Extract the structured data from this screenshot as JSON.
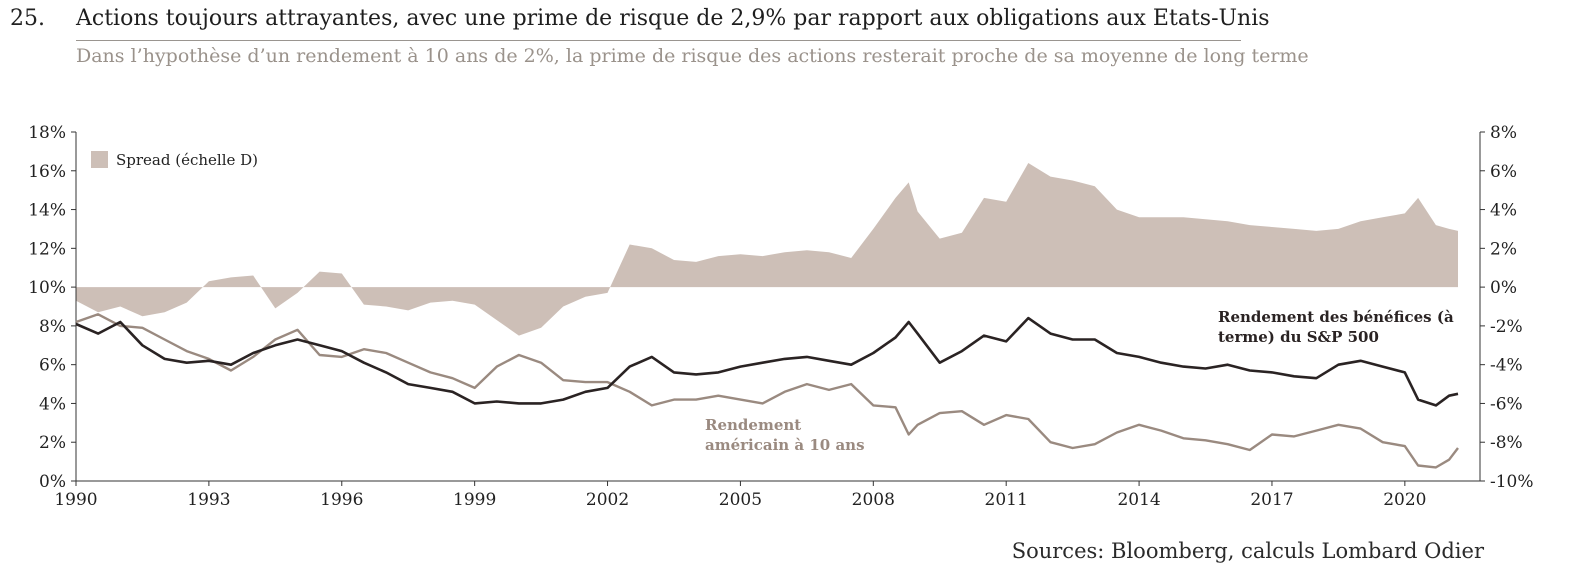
{
  "header": {
    "number": "25.",
    "title": "Actions toujours attrayantes, avec une prime de risque de 2,9% par rapport aux obligations aux Etats-Unis",
    "subtitle": "Dans l’hypothèse d’un rendement à 10 ans de 2%, la prime de risque des actions resterait proche de sa moyenne de long terme"
  },
  "source": "Sources: Bloomberg, calculs Lombard Odier",
  "colors": {
    "spread": "#cdbfb7",
    "earnings": "#2a2323",
    "treasury": "#9a8a80",
    "axis": "#333333"
  },
  "chart_data": {
    "type": "area",
    "x_ticks": [
      "1990",
      "1993",
      "1996",
      "1999",
      "2002",
      "2005",
      "2008",
      "2011",
      "2014",
      "2017",
      "2020"
    ],
    "xlim": [
      1990,
      2021.2
    ],
    "left_axis": {
      "ticks": [
        "0%",
        "2%",
        "4%",
        "6%",
        "8%",
        "10%",
        "12%",
        "14%",
        "16%",
        "18%"
      ],
      "ylim": [
        0,
        18
      ]
    },
    "right_axis": {
      "ticks": [
        "-10%",
        "-8%",
        "-6%",
        "-4%",
        "-2%",
        "0%",
        "2%",
        "4%",
        "6%",
        "8%"
      ],
      "ylim": [
        -10,
        8
      ]
    },
    "legend": {
      "label": "Spread (échelle D)",
      "position": "top-left"
    },
    "annotations": [
      {
        "lines": [
          "Rendement des bénéfices (à",
          "terme) du S&P 500"
        ],
        "series": "earnings"
      },
      {
        "lines": [
          "Rendement",
          "américain à 10 ans"
        ],
        "series": "treasury"
      }
    ],
    "series": [
      {
        "id": "earnings",
        "name": "Rendement des bénéfices (à terme) du S&P 500",
        "axis": "left",
        "x": [
          1990.0,
          1990.5,
          1991.0,
          1991.5,
          1992.0,
          1992.5,
          1993.0,
          1993.5,
          1994.0,
          1994.5,
          1995.0,
          1995.5,
          1996.0,
          1996.5,
          1997.0,
          1997.5,
          1998.0,
          1998.5,
          1999.0,
          1999.5,
          2000.0,
          2000.5,
          2001.0,
          2001.5,
          2002.0,
          2002.5,
          2003.0,
          2003.5,
          2004.0,
          2004.5,
          2005.0,
          2005.5,
          2006.0,
          2006.5,
          2007.0,
          2007.5,
          2008.0,
          2008.5,
          2008.8,
          2009.0,
          2009.5,
          2010.0,
          2010.5,
          2011.0,
          2011.5,
          2012.0,
          2012.5,
          2013.0,
          2013.5,
          2014.0,
          2014.5,
          2015.0,
          2015.5,
          2016.0,
          2016.5,
          2017.0,
          2017.5,
          2018.0,
          2018.5,
          2019.0,
          2019.5,
          2020.0,
          2020.3,
          2020.7,
          2021.0,
          2021.2
        ],
        "y": [
          8.1,
          7.6,
          8.2,
          7.0,
          6.3,
          6.1,
          6.2,
          6.0,
          6.6,
          7.0,
          7.3,
          7.0,
          6.7,
          6.1,
          5.6,
          5.0,
          4.8,
          4.6,
          4.0,
          4.1,
          4.0,
          4.0,
          4.2,
          4.6,
          4.8,
          5.9,
          6.4,
          5.6,
          5.5,
          5.6,
          5.9,
          6.1,
          6.3,
          6.4,
          6.2,
          6.0,
          6.6,
          7.4,
          8.2,
          7.6,
          6.1,
          6.7,
          7.5,
          7.2,
          8.4,
          7.6,
          7.3,
          7.3,
          6.6,
          6.4,
          6.1,
          5.9,
          5.8,
          6.0,
          5.7,
          5.6,
          5.4,
          5.3,
          6.0,
          6.2,
          5.9,
          5.6,
          4.2,
          3.9,
          4.4,
          4.5
        ]
      },
      {
        "id": "treasury",
        "name": "Rendement américain à 10 ans",
        "axis": "left",
        "x": [
          1990.0,
          1990.5,
          1991.0,
          1991.5,
          1992.0,
          1992.5,
          1993.0,
          1993.5,
          1994.0,
          1994.5,
          1995.0,
          1995.5,
          1996.0,
          1996.5,
          1997.0,
          1997.5,
          1998.0,
          1998.5,
          1999.0,
          1999.5,
          2000.0,
          2000.5,
          2001.0,
          2001.5,
          2002.0,
          2002.5,
          2003.0,
          2003.5,
          2004.0,
          2004.5,
          2005.0,
          2005.5,
          2006.0,
          2006.5,
          2007.0,
          2007.5,
          2008.0,
          2008.5,
          2008.8,
          2009.0,
          2009.5,
          2010.0,
          2010.5,
          2011.0,
          2011.5,
          2012.0,
          2012.5,
          2013.0,
          2013.5,
          2014.0,
          2014.5,
          2015.0,
          2015.5,
          2016.0,
          2016.5,
          2017.0,
          2017.5,
          2018.0,
          2018.5,
          2019.0,
          2019.5,
          2020.0,
          2020.3,
          2020.7,
          2021.0,
          2021.2
        ],
        "y": [
          8.2,
          8.6,
          8.0,
          7.9,
          7.3,
          6.7,
          6.3,
          5.7,
          6.4,
          7.3,
          7.8,
          6.5,
          6.4,
          6.8,
          6.6,
          6.1,
          5.6,
          5.3,
          4.8,
          5.9,
          6.5,
          6.1,
          5.2,
          5.1,
          5.1,
          4.6,
          3.9,
          4.2,
          4.2,
          4.4,
          4.2,
          4.0,
          4.6,
          5.0,
          4.7,
          5.0,
          3.9,
          3.8,
          2.4,
          2.9,
          3.5,
          3.6,
          2.9,
          3.4,
          3.2,
          2.0,
          1.7,
          1.9,
          2.5,
          2.9,
          2.6,
          2.2,
          2.1,
          1.9,
          1.6,
          2.4,
          2.3,
          2.6,
          2.9,
          2.7,
          2.0,
          1.8,
          0.8,
          0.7,
          1.1,
          1.7
        ]
      },
      {
        "id": "spread",
        "name": "Spread (échelle D)",
        "axis": "right",
        "x": [
          1990.0,
          1990.5,
          1991.0,
          1991.5,
          1992.0,
          1992.5,
          1993.0,
          1993.5,
          1994.0,
          1994.5,
          1995.0,
          1995.5,
          1996.0,
          1996.5,
          1997.0,
          1997.5,
          1998.0,
          1998.5,
          1999.0,
          1999.5,
          2000.0,
          2000.5,
          2001.0,
          2001.5,
          2002.0,
          2002.5,
          2003.0,
          2003.5,
          2004.0,
          2004.5,
          2005.0,
          2005.5,
          2006.0,
          2006.5,
          2007.0,
          2007.5,
          2008.0,
          2008.5,
          2008.8,
          2009.0,
          2009.5,
          2010.0,
          2010.5,
          2011.0,
          2011.5,
          2012.0,
          2012.5,
          2013.0,
          2013.5,
          2014.0,
          2014.5,
          2015.0,
          2015.5,
          2016.0,
          2016.5,
          2017.0,
          2017.5,
          2018.0,
          2018.5,
          2019.0,
          2019.5,
          2020.0,
          2020.3,
          2020.7,
          2021.0,
          2021.2
        ],
        "y": [
          -0.7,
          -1.3,
          -1.0,
          -1.5,
          -1.3,
          -0.8,
          0.3,
          0.5,
          0.6,
          -1.1,
          -0.3,
          0.8,
          0.7,
          -0.9,
          -1.0,
          -1.2,
          -0.8,
          -0.7,
          -0.9,
          -1.7,
          -2.5,
          -2.1,
          -1.0,
          -0.5,
          -0.3,
          2.2,
          2.0,
          1.4,
          1.3,
          1.6,
          1.7,
          1.6,
          1.8,
          1.9,
          1.8,
          1.5,
          3.0,
          4.6,
          5.4,
          3.9,
          2.5,
          2.8,
          4.6,
          4.4,
          6.4,
          5.7,
          5.5,
          5.2,
          4.0,
          3.6,
          3.6,
          3.6,
          3.5,
          3.4,
          3.2,
          3.1,
          3.0,
          2.9,
          3.0,
          3.4,
          3.6,
          3.8,
          4.6,
          3.2,
          3.0,
          2.9
        ]
      }
    ]
  }
}
